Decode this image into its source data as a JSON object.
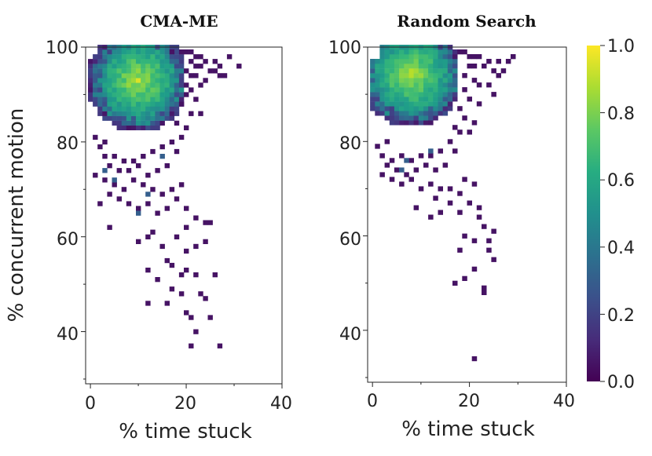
{
  "chart_data": [
    {
      "type": "heatmap",
      "title": "CMA-ME",
      "xlabel": "% time stuck",
      "ylabel": "% concurrent motion",
      "xlim": [
        -1,
        40
      ],
      "ylim": [
        29,
        100
      ],
      "xticks": [
        "0",
        "20",
        "40"
      ],
      "yticks": [
        "40",
        "60",
        "80",
        "100"
      ],
      "dense_region": {
        "x": [
          0,
          19
        ],
        "y": [
          79,
          100
        ],
        "peak": [
          10,
          93
        ]
      },
      "cells": [
        [
          17,
          99,
          0.05
        ],
        [
          19,
          99,
          0.05
        ],
        [
          20,
          99,
          0.05
        ],
        [
          21,
          99,
          0.05
        ],
        [
          22,
          98,
          0.05
        ],
        [
          23,
          98,
          0.05
        ],
        [
          24,
          97,
          0.05
        ],
        [
          26,
          97,
          0.05
        ],
        [
          27,
          96,
          0.05
        ],
        [
          29,
          98,
          0.05
        ],
        [
          31,
          96,
          0.05
        ],
        [
          21,
          97,
          0.05
        ],
        [
          22,
          96,
          0.05
        ],
        [
          23,
          96,
          0.05
        ],
        [
          25,
          95,
          0.05
        ],
        [
          26,
          95,
          0.05
        ],
        [
          27,
          94,
          0.05
        ],
        [
          28,
          94,
          0.05
        ],
        [
          20,
          95,
          0.05
        ],
        [
          21,
          94,
          0.05
        ],
        [
          22,
          94,
          0.05
        ],
        [
          24,
          93,
          0.05
        ],
        [
          20,
          92,
          0.05
        ],
        [
          21,
          91,
          0.05
        ],
        [
          23,
          92,
          0.05
        ],
        [
          20,
          90,
          0.05
        ],
        [
          22,
          89,
          0.05
        ],
        [
          19,
          88,
          0.05
        ],
        [
          21,
          86,
          0.05
        ],
        [
          23,
          86,
          0.05
        ],
        [
          18,
          84,
          0.05
        ],
        [
          20,
          83,
          0.05
        ],
        [
          19,
          81,
          0.05
        ],
        [
          17,
          80,
          0.05
        ],
        [
          18,
          78,
          0.05
        ],
        [
          15,
          79,
          0.05
        ],
        [
          13,
          78,
          0.05
        ],
        [
          11,
          77,
          0.05
        ],
        [
          9,
          76,
          0.05
        ],
        [
          7,
          76,
          0.05
        ],
        [
          5,
          77,
          0.05
        ],
        [
          3,
          77,
          0.05
        ],
        [
          2,
          79,
          0.05
        ],
        [
          1,
          81,
          0.05
        ],
        [
          3,
          80,
          0.05
        ],
        [
          4,
          75,
          0.05
        ],
        [
          6,
          74,
          0.05
        ],
        [
          8,
          74,
          0.05
        ],
        [
          10,
          75,
          0.05
        ],
        [
          12,
          73,
          0.05
        ],
        [
          14,
          74,
          0.05
        ],
        [
          16,
          75,
          0.05
        ],
        [
          1,
          73,
          0.05
        ],
        [
          3,
          72,
          0.05
        ],
        [
          5,
          71,
          0.05
        ],
        [
          7,
          70,
          0.05
        ],
        [
          9,
          72,
          0.05
        ],
        [
          11,
          71,
          0.05
        ],
        [
          13,
          70,
          0.05
        ],
        [
          15,
          69,
          0.05
        ],
        [
          17,
          70,
          0.05
        ],
        [
          19,
          71,
          0.05
        ],
        [
          4,
          69,
          0.05
        ],
        [
          6,
          68,
          0.05
        ],
        [
          8,
          67,
          0.05
        ],
        [
          10,
          66,
          0.05
        ],
        [
          12,
          67,
          0.05
        ],
        [
          14,
          65,
          0.05
        ],
        [
          16,
          66,
          0.05
        ],
        [
          18,
          68,
          0.05
        ],
        [
          20,
          66,
          0.05
        ],
        [
          2,
          67,
          0.05
        ],
        [
          22,
          64,
          0.05
        ],
        [
          24,
          63,
          0.05
        ],
        [
          25,
          63,
          0.05
        ],
        [
          20,
          62,
          0.05
        ],
        [
          4,
          62,
          0.05
        ],
        [
          12,
          60,
          0.05
        ],
        [
          13,
          61,
          0.05
        ],
        [
          10,
          59,
          0.05
        ],
        [
          15,
          58,
          0.05
        ],
        [
          18,
          60,
          0.05
        ],
        [
          20,
          57,
          0.05
        ],
        [
          22,
          58,
          0.05
        ],
        [
          24,
          59,
          0.05
        ],
        [
          16,
          55,
          0.05
        ],
        [
          17,
          54,
          0.05
        ],
        [
          19,
          52,
          0.05
        ],
        [
          20,
          53,
          0.05
        ],
        [
          22,
          52,
          0.05
        ],
        [
          26,
          52,
          0.05
        ],
        [
          12,
          53,
          0.05
        ],
        [
          14,
          51,
          0.05
        ],
        [
          17,
          49,
          0.05
        ],
        [
          19,
          48,
          0.05
        ],
        [
          23,
          48,
          0.05
        ],
        [
          24,
          47,
          0.05
        ],
        [
          16,
          46,
          0.05
        ],
        [
          12,
          46,
          0.05
        ],
        [
          21,
          43,
          0.05
        ],
        [
          20,
          44,
          0.05
        ],
        [
          25,
          43,
          0.05
        ],
        [
          22,
          40,
          0.05
        ],
        [
          21,
          37,
          0.05
        ],
        [
          27,
          37,
          0.05
        ],
        [
          10,
          65,
          0.3
        ],
        [
          15,
          77,
          0.3
        ],
        [
          12,
          69,
          0.3
        ],
        [
          3,
          74,
          0.3
        ],
        [
          5,
          72,
          0.3
        ]
      ]
    },
    {
      "type": "heatmap",
      "title": "Random Search",
      "xlabel": "% time stuck",
      "ylabel": "",
      "xlim": [
        -1,
        40
      ],
      "ylim": [
        29,
        100
      ],
      "xticks": [
        "0",
        "20",
        "40"
      ],
      "yticks": [
        "40",
        "60",
        "80",
        "100"
      ],
      "colorbar": {
        "ticks": [
          "0.0",
          "0.2",
          "0.4",
          "0.6",
          "0.8",
          "1.0"
        ],
        "range": [
          0,
          1
        ],
        "colormap": "viridis"
      },
      "dense_region": {
        "x": [
          0,
          17
        ],
        "y": [
          79,
          100
        ],
        "peak": [
          8,
          94
        ]
      },
      "cells": [
        [
          18,
          99,
          0.05
        ],
        [
          19,
          99,
          0.05
        ],
        [
          20,
          98,
          0.05
        ],
        [
          21,
          98,
          0.05
        ],
        [
          22,
          98,
          0.05
        ],
        [
          24,
          97,
          0.05
        ],
        [
          26,
          97,
          0.05
        ],
        [
          28,
          97,
          0.05
        ],
        [
          29,
          98,
          0.05
        ],
        [
          20,
          96,
          0.05
        ],
        [
          21,
          96,
          0.05
        ],
        [
          23,
          96,
          0.05
        ],
        [
          25,
          95,
          0.05
        ],
        [
          26,
          94,
          0.05
        ],
        [
          27,
          95,
          0.05
        ],
        [
          19,
          94,
          0.05
        ],
        [
          21,
          93,
          0.05
        ],
        [
          22,
          92,
          0.05
        ],
        [
          24,
          92,
          0.05
        ],
        [
          25,
          90,
          0.05
        ],
        [
          19,
          91,
          0.05
        ],
        [
          20,
          89,
          0.05
        ],
        [
          22,
          88,
          0.05
        ],
        [
          18,
          87,
          0.05
        ],
        [
          19,
          85,
          0.05
        ],
        [
          21,
          84,
          0.05
        ],
        [
          17,
          83,
          0.05
        ],
        [
          18,
          82,
          0.05
        ],
        [
          20,
          82,
          0.05
        ],
        [
          16,
          80,
          0.05
        ],
        [
          17,
          78,
          0.05
        ],
        [
          14,
          78,
          0.05
        ],
        [
          12,
          77,
          0.05
        ],
        [
          10,
          77,
          0.05
        ],
        [
          8,
          76,
          0.05
        ],
        [
          6,
          77,
          0.05
        ],
        [
          4,
          76,
          0.05
        ],
        [
          2,
          77,
          0.05
        ],
        [
          1,
          79,
          0.05
        ],
        [
          3,
          80,
          0.05
        ],
        [
          3,
          75,
          0.05
        ],
        [
          5,
          74,
          0.05
        ],
        [
          7,
          73,
          0.05
        ],
        [
          9,
          74,
          0.05
        ],
        [
          11,
          75,
          0.05
        ],
        [
          13,
          74,
          0.05
        ],
        [
          15,
          75,
          0.05
        ],
        [
          2,
          73,
          0.05
        ],
        [
          4,
          72,
          0.05
        ],
        [
          6,
          71,
          0.05
        ],
        [
          8,
          72,
          0.05
        ],
        [
          10,
          70,
          0.05
        ],
        [
          12,
          71,
          0.05
        ],
        [
          14,
          70,
          0.05
        ],
        [
          16,
          70,
          0.05
        ],
        [
          19,
          72,
          0.05
        ],
        [
          21,
          71,
          0.05
        ],
        [
          18,
          69,
          0.05
        ],
        [
          20,
          67,
          0.05
        ],
        [
          22,
          66,
          0.05
        ],
        [
          13,
          68,
          0.05
        ],
        [
          16,
          67,
          0.05
        ],
        [
          9,
          66,
          0.05
        ],
        [
          12,
          64,
          0.05
        ],
        [
          14,
          65,
          0.05
        ],
        [
          18,
          65,
          0.05
        ],
        [
          22,
          64,
          0.05
        ],
        [
          23,
          62,
          0.05
        ],
        [
          25,
          61,
          0.05
        ],
        [
          19,
          60,
          0.05
        ],
        [
          21,
          59,
          0.05
        ],
        [
          24,
          59,
          0.05
        ],
        [
          18,
          57,
          0.05
        ],
        [
          24,
          57,
          0.05
        ],
        [
          25,
          55,
          0.05
        ],
        [
          21,
          53,
          0.05
        ],
        [
          19,
          51,
          0.05
        ],
        [
          17,
          50,
          0.05
        ],
        [
          23,
          49,
          0.05
        ],
        [
          23,
          48,
          0.05
        ],
        [
          21,
          34,
          0.05
        ],
        [
          7,
          76,
          0.3
        ],
        [
          12,
          78,
          0.3
        ],
        [
          6,
          74,
          0.3
        ]
      ]
    }
  ]
}
